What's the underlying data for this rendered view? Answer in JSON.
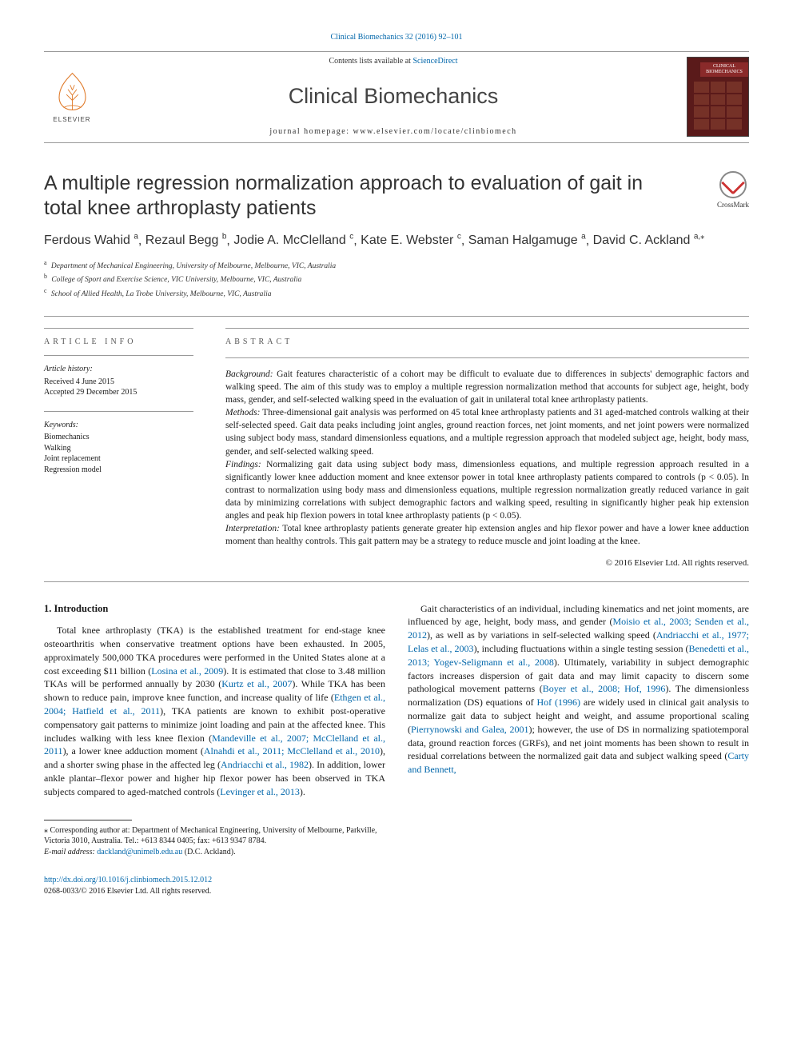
{
  "top_citation": "Clinical Biomechanics 32 (2016) 92–101",
  "masthead": {
    "contents_prefix": "Contents lists available at ",
    "contents_link": "ScienceDirect",
    "journal_name": "Clinical Biomechanics",
    "homepage_label": "journal homepage: ",
    "homepage_url": "www.elsevier.com/locate/clinbiomech",
    "publisher_word": "ELSEVIER",
    "cover_label": "CLINICAL BIOMECHANICS"
  },
  "article": {
    "title": "A multiple regression normalization approach to evaluation of gait in total knee arthroplasty patients",
    "crossmark_label": "CrossMark",
    "authors_html": [
      {
        "name": "Ferdous Wahid",
        "sup": "a"
      },
      {
        "name": "Rezaul Begg",
        "sup": "b"
      },
      {
        "name": "Jodie A. McClelland",
        "sup": "c"
      },
      {
        "name": "Kate E. Webster",
        "sup": "c"
      },
      {
        "name": "Saman Halgamuge",
        "sup": "a"
      },
      {
        "name": "David C. Ackland",
        "sup": "a,",
        "corr": true
      }
    ],
    "affiliations": [
      {
        "sup": "a",
        "text": "Department of Mechanical Engineering, University of Melbourne, Melbourne, VIC, Australia"
      },
      {
        "sup": "b",
        "text": "College of Sport and Exercise Science, VIC University, Melbourne, VIC, Australia"
      },
      {
        "sup": "c",
        "text": "School of Allied Health, La Trobe University, Melbourne, VIC, Australia"
      }
    ]
  },
  "info": {
    "heading": "article info",
    "history_label": "Article history:",
    "received": "Received 4 June 2015",
    "accepted": "Accepted 29 December 2015",
    "keywords_label": "Keywords:",
    "keywords": [
      "Biomechanics",
      "Walking",
      "Joint replacement",
      "Regression model"
    ]
  },
  "abstract": {
    "heading": "abstract",
    "sections": [
      {
        "label": "Background:",
        "text": " Gait features characteristic of a cohort may be difficult to evaluate due to differences in subjects' demographic factors and walking speed. The aim of this study was to employ a multiple regression normalization method that accounts for subject age, height, body mass, gender, and self-selected walking speed in the evaluation of gait in unilateral total knee arthroplasty patients."
      },
      {
        "label": "Methods:",
        "text": " Three-dimensional gait analysis was performed on 45 total knee arthroplasty patients and 31 aged-matched controls walking at their self-selected speed. Gait data peaks including joint angles, ground reaction forces, net joint moments, and net joint powers were normalized using subject body mass, standard dimensionless equations, and a multiple regression approach that modeled subject age, height, body mass, gender, and self-selected walking speed."
      },
      {
        "label": "Findings:",
        "text": " Normalizing gait data using subject body mass, dimensionless equations, and multiple regression approach resulted in a significantly lower knee adduction moment and knee extensor power in total knee arthroplasty patients compared to controls (p < 0.05). In contrast to normalization using body mass and dimensionless equations, multiple regression normalization greatly reduced variance in gait data by minimizing correlations with subject demographic factors and walking speed, resulting in significantly higher peak hip extension angles and peak hip flexion powers in total knee arthroplasty patients (p < 0.05)."
      },
      {
        "label": "Interpretation:",
        "text": " Total knee arthroplasty patients generate greater hip extension angles and hip flexor power and have a lower knee adduction moment than healthy controls. This gait pattern may be a strategy to reduce muscle and joint loading at the knee."
      }
    ],
    "copyright": "© 2016 Elsevier Ltd. All rights reserved."
  },
  "body": {
    "section_heading": "1. Introduction",
    "p1a": "Total knee arthroplasty (TKA) is the established treatment for end-stage knee osteoarthritis when conservative treatment options have been exhausted. In 2005, approximately 500,000 TKA procedures were performed in the United States alone at a cost exceeding $11 billion (",
    "link1": "Losina et al., 2009",
    "p1b": "). It is estimated that close to 3.48 million TKAs will be performed annually by 2030 (",
    "link2": "Kurtz et al., 2007",
    "p1c": "). While TKA has been shown to reduce pain, improve knee function, and increase quality of life (",
    "link3": "Ethgen et al., 2004; Hatfield et al., 2011",
    "p1d": "), TKA patients are known to exhibit post-operative compensatory gait patterns to minimize joint loading and pain at the affected knee. This includes walking with less knee flexion (",
    "link4": "Mandeville et al., 2007; McClelland et al., 2011",
    "p1e": "), a lower knee adduction moment (",
    "link5": "Alnahdi et al., 2011; McClelland et al.,",
    "p2a_link": "2010",
    "p2a": "), and a shorter swing phase in the affected leg (",
    "link6": "Andriacchi et al., 1982",
    "p2b": "). In addition, lower ankle plantar–flexor power and higher hip flexor power has been observed in TKA subjects compared to aged-matched controls (",
    "link7": "Levinger et al., 2013",
    "p2c": ").",
    "p3a": "Gait characteristics of an individual, including kinematics and net joint moments, are influenced by age, height, body mass, and gender (",
    "link8": "Moisio et al., 2003; Senden et al., 2012",
    "p3b": "), as well as by variations in self-selected walking speed (",
    "link9": "Andriacchi et al., 1977; Lelas et al., 2003",
    "p3c": "), including fluctuations within a single testing session (",
    "link10": "Benedetti et al., 2013; Yogev-Seligmann et al., 2008",
    "p3d": "). Ultimately, variability in subject demographic factors increases dispersion of gait data and may limit capacity to discern some pathological movement patterns (",
    "link11": "Boyer et al., 2008; Hof, 1996",
    "p3e": "). The dimensionless normalization (DS) equations of ",
    "link12": "Hof (1996)",
    "p3f": " are widely used in clinical gait analysis to normalize gait data to subject height and weight, and assume proportional scaling (",
    "link13": "Pierrynowski and Galea, 2001",
    "p3g": "); however, the use of DS in normalizing spatiotemporal data, ground reaction forces (GRFs), and net joint moments has been shown to result in residual correlations between the normalized gait data and subject walking speed (",
    "link14": "Carty and Bennett,"
  },
  "footnote": {
    "corr_label": "⁎ Corresponding author at: Department of Mechanical Engineering, University of Melbourne, Parkville, Victoria 3010, Australia. Tel.: +613 8344 0405; fax: +613 9347 8784.",
    "email_label": "E-mail address: ",
    "email": "dackland@unimelb.edu.au",
    "email_suffix": " (D.C. Ackland)."
  },
  "footer": {
    "doi": "http://dx.doi.org/10.1016/j.clinbiomech.2015.12.012",
    "issn_line": "0268-0033/© 2016 Elsevier Ltd. All rights reserved."
  },
  "style": {
    "link_color": "#0066aa",
    "rule_color": "#999999",
    "text_color": "#1a1a1a",
    "cover_bg": "#5a1a1a",
    "cover_band": "#8a2a2a"
  }
}
